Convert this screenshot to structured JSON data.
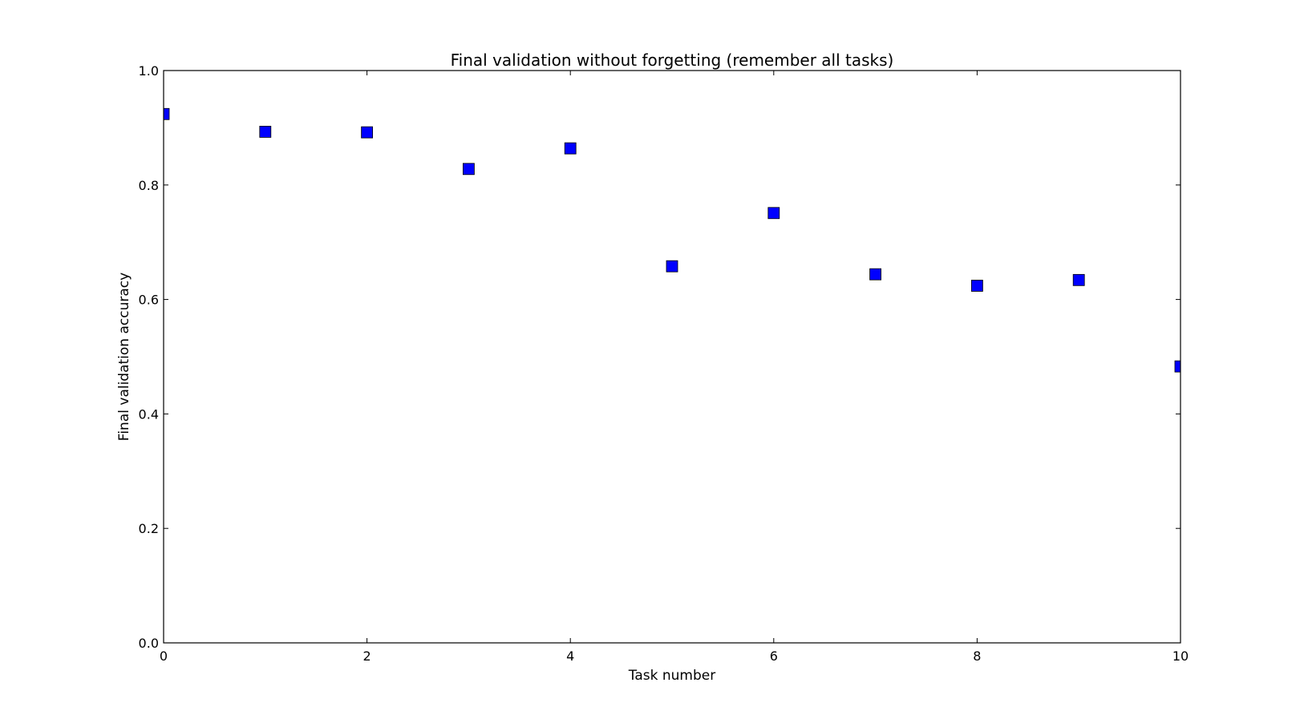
{
  "chart_data": {
    "type": "scatter",
    "title": "Final validation without forgetting (remember all tasks)",
    "xlabel": "Task number",
    "ylabel": "Final validation accuracy",
    "xlim": [
      0,
      10
    ],
    "ylim": [
      0.0,
      1.0
    ],
    "xticks": [
      "0",
      "2",
      "4",
      "6",
      "8",
      "10"
    ],
    "xtick_values": [
      0,
      2,
      4,
      6,
      8,
      10
    ],
    "yticks": [
      "0.0",
      "0.2",
      "0.4",
      "0.6",
      "0.8",
      "1.0"
    ],
    "ytick_values": [
      0.0,
      0.2,
      0.4,
      0.6,
      0.8,
      1.0
    ],
    "grid": false,
    "legend": "none",
    "marker": "square",
    "marker_color": "#0000ff",
    "series": [
      {
        "x": [
          0,
          1,
          2,
          3,
          4,
          5,
          6,
          7,
          8,
          9,
          10
        ],
        "y": [
          0.924,
          0.893,
          0.892,
          0.828,
          0.864,
          0.658,
          0.751,
          0.644,
          0.624,
          0.634,
          0.483
        ]
      }
    ]
  }
}
